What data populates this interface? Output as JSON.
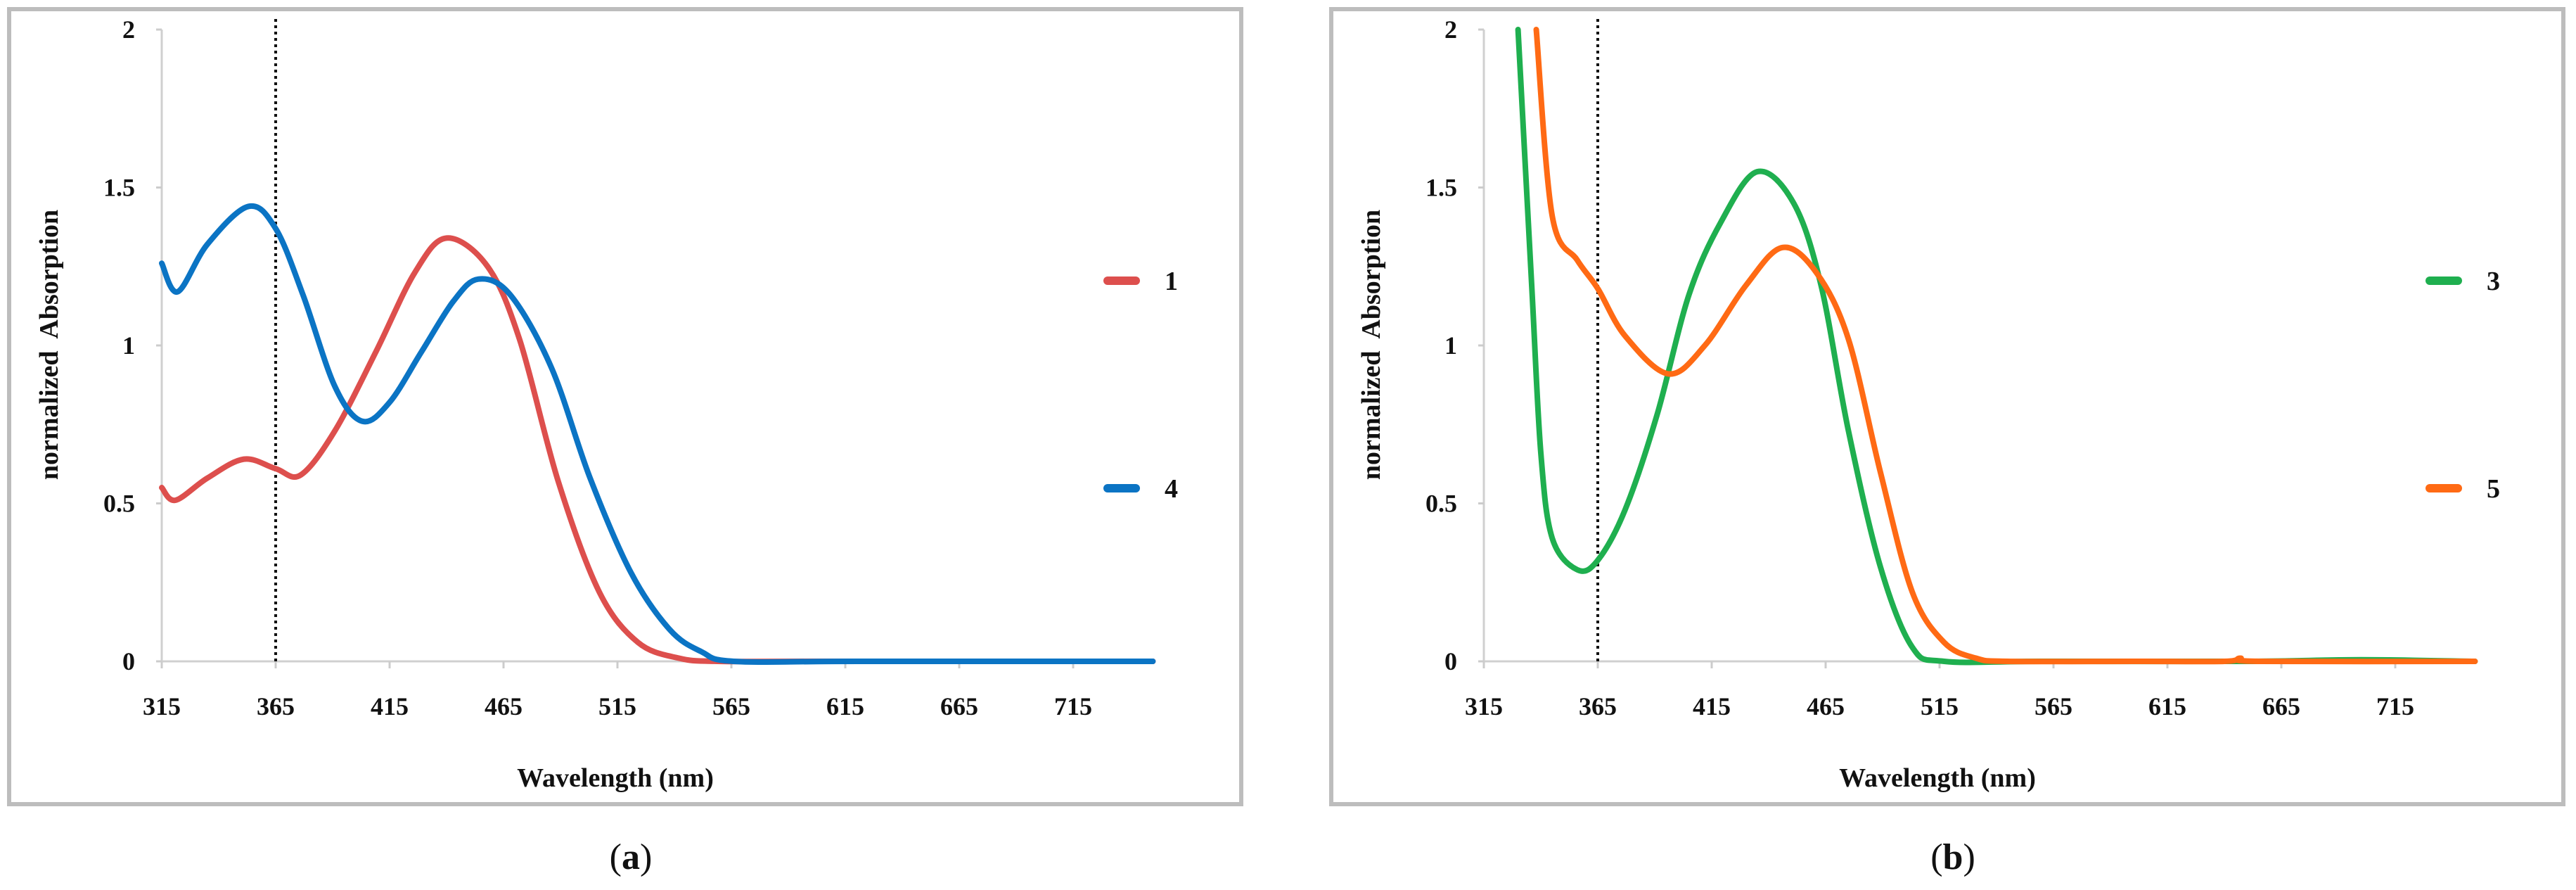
{
  "chart_data": [
    {
      "type": "line",
      "panel_label": "a",
      "caption_open": "(",
      "caption_close": ")",
      "xlabel": "Wavelength (nm)",
      "ylabel": "normalized  Absorption",
      "xlim": [
        315,
        750
      ],
      "ylim": [
        0,
        2
      ],
      "xticks": [
        "315",
        "365",
        "415",
        "465",
        "515",
        "565",
        "615",
        "665",
        "715"
      ],
      "yticks": [
        "0",
        "0.5",
        "1",
        "1.5",
        "2"
      ],
      "grid": false,
      "legend_position": "right",
      "reference_line": {
        "x": 365,
        "style": "dotted"
      },
      "series": [
        {
          "name": "1",
          "color": "#dd4f4d",
          "x": [
            315,
            321,
            335,
            351,
            365,
            376,
            391,
            409,
            426,
            440,
            458,
            472,
            489,
            507,
            524,
            542,
            559,
            600,
            750
          ],
          "y": [
            0.55,
            0.51,
            0.58,
            0.64,
            0.61,
            0.59,
            0.73,
            0.98,
            1.23,
            1.34,
            1.25,
            1.02,
            0.57,
            0.22,
            0.06,
            0.01,
            0,
            0,
            0
          ]
        },
        {
          "name": "4",
          "color": "#0b74c4",
          "x": [
            315,
            322,
            335,
            353,
            365,
            377,
            391,
            403,
            415,
            429,
            443,
            454,
            468,
            486,
            503,
            521,
            538,
            552,
            566,
            620,
            750
          ],
          "y": [
            1.26,
            1.17,
            1.32,
            1.44,
            1.37,
            1.16,
            0.87,
            0.76,
            0.82,
            0.98,
            1.14,
            1.21,
            1.16,
            0.93,
            0.58,
            0.28,
            0.1,
            0.03,
            0,
            0,
            0
          ]
        }
      ]
    },
    {
      "type": "line",
      "panel_label": "b",
      "caption_open": "(",
      "caption_close": ")",
      "xlabel": "Wavelength (nm)",
      "ylabel": "normalized  Absorption",
      "xlim": [
        315,
        750
      ],
      "ylim": [
        0,
        2
      ],
      "xticks": [
        "315",
        "365",
        "415",
        "465",
        "515",
        "565",
        "615",
        "665",
        "715"
      ],
      "yticks": [
        "0",
        "0.5",
        "1",
        "1.5",
        "2"
      ],
      "grid": false,
      "legend_position": "right",
      "reference_line": {
        "x": 365,
        "style": "dotted"
      },
      "series": [
        {
          "name": "3",
          "color": "#1faf4f",
          "x": [
            330,
            336,
            340,
            345,
            356,
            365,
            377,
            391,
            405,
            419,
            435,
            451,
            463,
            475,
            489,
            503,
            517,
            560,
            650,
            700,
            750
          ],
          "y": [
            2.0,
            1.19,
            0.66,
            0.39,
            0.29,
            0.32,
            0.48,
            0.78,
            1.16,
            1.39,
            1.55,
            1.45,
            1.19,
            0.73,
            0.3,
            0.045,
            0,
            0,
            0,
            0.005,
            0
          ]
        },
        {
          "name": "5",
          "color": "#ff6a14",
          "x": [
            338,
            345,
            356,
            365,
            377,
            396,
            412,
            430,
            446,
            461,
            475,
            489,
            503,
            517,
            531,
            545,
            600,
            640,
            647,
            655,
            750
          ],
          "y": [
            2.0,
            1.41,
            1.27,
            1.18,
            1.03,
            0.91,
            1.0,
            1.19,
            1.31,
            1.23,
            1.02,
            0.6,
            0.22,
            0.06,
            0.01,
            0,
            0,
            0,
            0.01,
            0,
            0
          ]
        }
      ]
    }
  ]
}
